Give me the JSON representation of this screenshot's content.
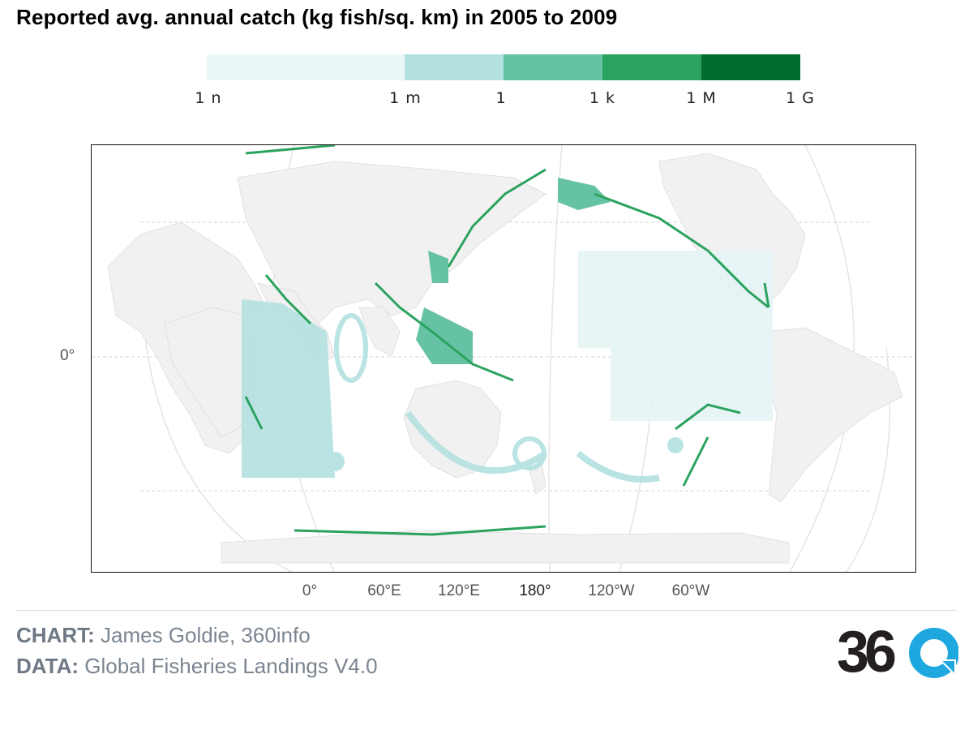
{
  "title": "Reported avg. annual catch (kg fish/sq. km) in 2005 to 2009",
  "legend": {
    "labels": [
      "1 n",
      "1 m",
      "1",
      "1 k",
      "1 M",
      "1 G"
    ],
    "colors": [
      "#eaf6f7",
      "#b3e1e0",
      "#66c2a4",
      "#2ca25f",
      "#006d2c"
    ]
  },
  "map": {
    "x_axis_labels": [
      "0°",
      "60°E",
      "120°E",
      "180°",
      "120°W",
      "60°W"
    ],
    "y_axis_labels": [
      "0°"
    ]
  },
  "credits": {
    "chart_key": "CHART:",
    "chart_value": "James Goldie, 360info",
    "data_key": "DATA:",
    "data_value": "Global Fisheries Landings V4.0"
  },
  "logo": {
    "text": "360",
    "accent": "#1fa8e0"
  }
}
